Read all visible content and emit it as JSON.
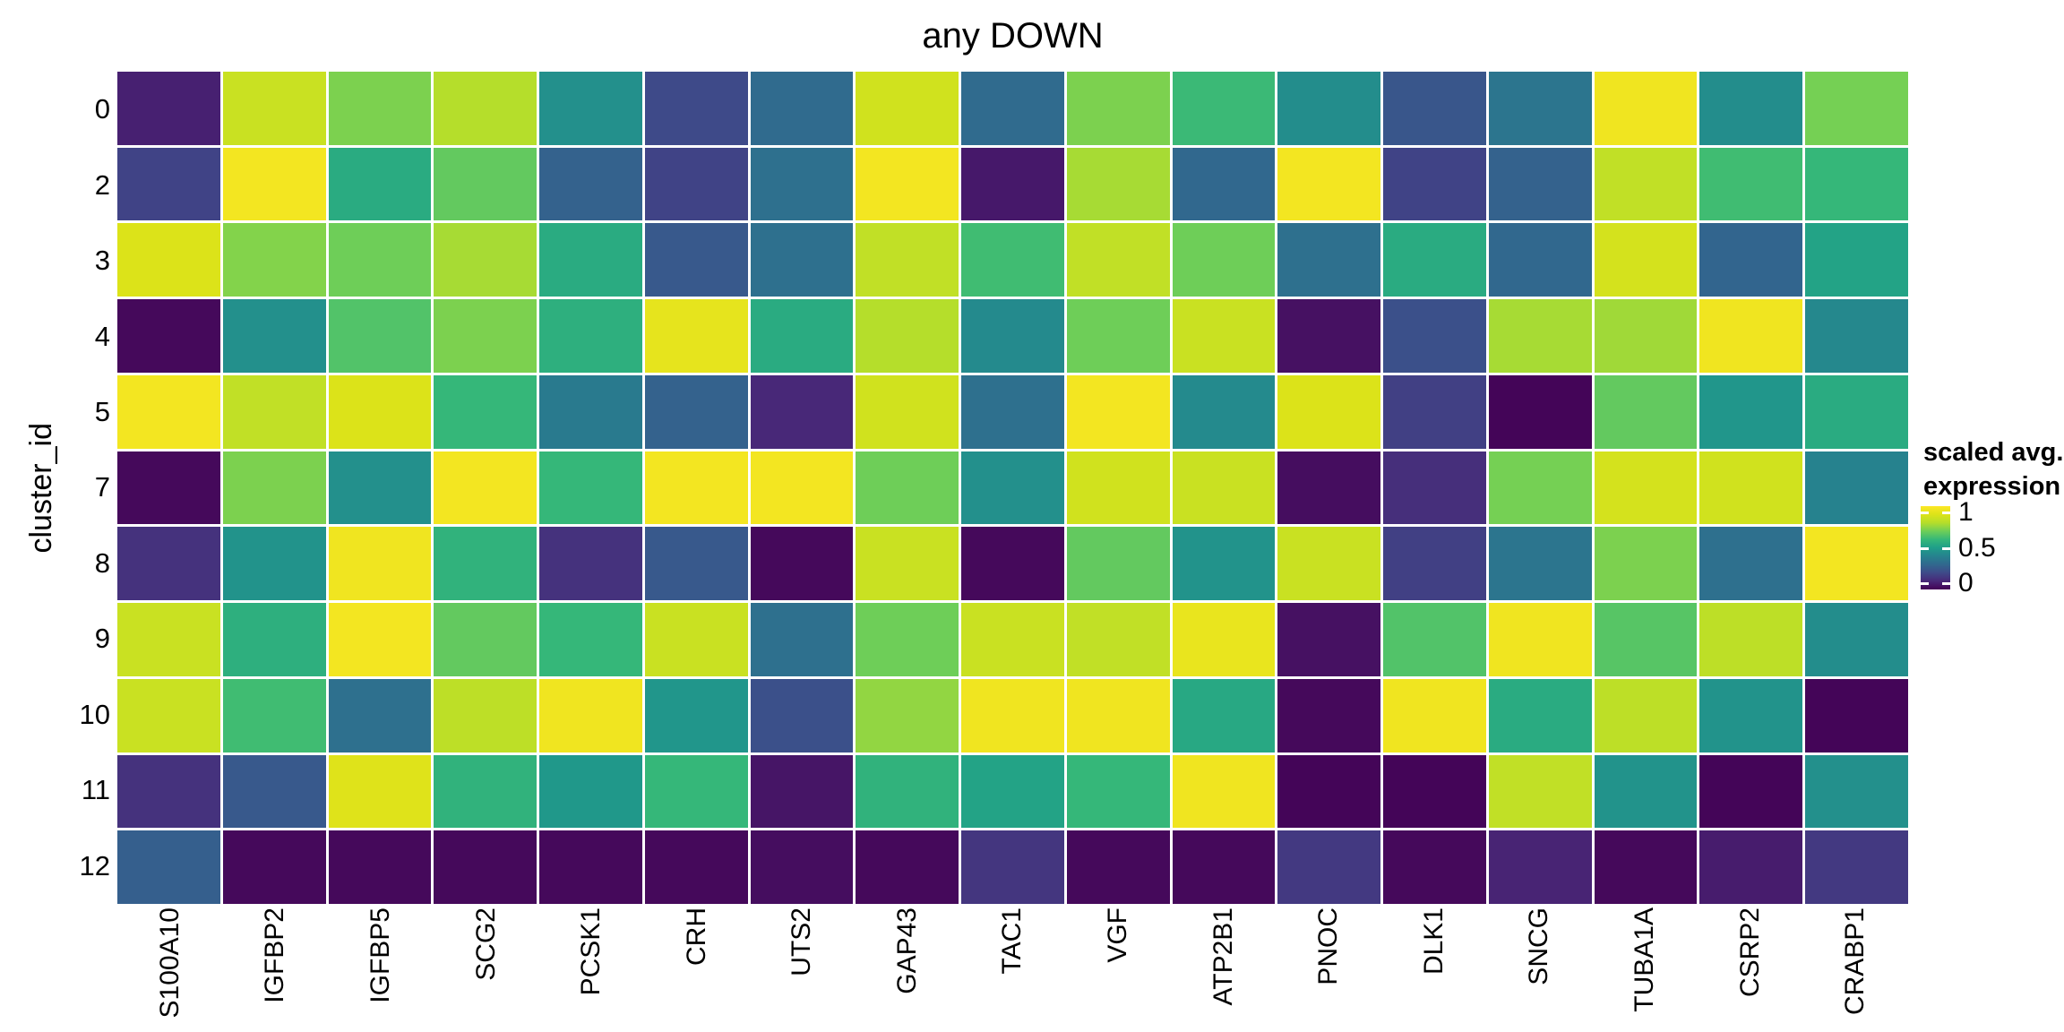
{
  "title": "any DOWN",
  "axes": {
    "y_title": "cluster_id"
  },
  "legend": {
    "title_line1": "scaled avg.",
    "title_line2": "expression",
    "tick_labels": [
      "1",
      "0.5",
      "0"
    ]
  },
  "colors": {
    "background": "#ffffff",
    "cell_gap": "#ffffff",
    "text": "#000000"
  },
  "chart_data": {
    "type": "heatmap",
    "title": "any DOWN",
    "xlabel": "",
    "ylabel": "cluster_id",
    "legend_title": "scaled avg. expression",
    "value_range": [
      0,
      1
    ],
    "grid": false,
    "legend_position": "right",
    "colormap": "viridis",
    "colormap_stops": [
      "#440154",
      "#482878",
      "#3e4a89",
      "#31688e",
      "#26828e",
      "#1f9e89",
      "#35b779",
      "#6ece58",
      "#b5de2b",
      "#dce319",
      "#fde725"
    ],
    "colorbar_ticks": [
      {
        "value": 1,
        "label": "1"
      },
      {
        "value": 0.5,
        "label": "0.5"
      },
      {
        "value": 0,
        "label": "0"
      }
    ],
    "columns": [
      "S100A10",
      "IGFBP2",
      "IGFBP5",
      "SCG2",
      "PCSK1",
      "CRH",
      "UTS2",
      "GAP43",
      "TAC1",
      "VGF",
      "ATP2B1",
      "PNOC",
      "DLK1",
      "SNCG",
      "TUBA1A",
      "CSRP2",
      "CRABP1"
    ],
    "rows": [
      "0",
      "2",
      "3",
      "4",
      "5",
      "7",
      "8",
      "9",
      "10",
      "11",
      "12"
    ],
    "values": [
      [
        0.08,
        0.85,
        0.72,
        0.8,
        0.45,
        0.2,
        0.31,
        0.87,
        0.31,
        0.72,
        0.61,
        0.44,
        0.24,
        0.35,
        0.96,
        0.44,
        0.71
      ],
      [
        0.18,
        0.97,
        0.55,
        0.68,
        0.28,
        0.18,
        0.33,
        0.97,
        0.06,
        0.78,
        0.3,
        0.97,
        0.18,
        0.28,
        0.83,
        0.62,
        0.6
      ],
      [
        0.9,
        0.73,
        0.7,
        0.78,
        0.55,
        0.25,
        0.33,
        0.83,
        0.62,
        0.83,
        0.7,
        0.33,
        0.55,
        0.3,
        0.88,
        0.29,
        0.52
      ],
      [
        0.02,
        0.45,
        0.65,
        0.72,
        0.57,
        0.93,
        0.55,
        0.8,
        0.43,
        0.7,
        0.85,
        0.04,
        0.22,
        0.78,
        0.77,
        0.96,
        0.42
      ],
      [
        0.97,
        0.83,
        0.9,
        0.6,
        0.37,
        0.28,
        0.1,
        0.87,
        0.33,
        0.97,
        0.43,
        0.9,
        0.17,
        0.01,
        0.68,
        0.47,
        0.55
      ],
      [
        0.02,
        0.72,
        0.45,
        0.97,
        0.6,
        0.97,
        0.97,
        0.7,
        0.45,
        0.87,
        0.85,
        0.03,
        0.12,
        0.71,
        0.88,
        0.87,
        0.4
      ],
      [
        0.13,
        0.46,
        0.96,
        0.58,
        0.13,
        0.25,
        0.02,
        0.85,
        0.02,
        0.68,
        0.46,
        0.85,
        0.17,
        0.35,
        0.72,
        0.33,
        0.97
      ],
      [
        0.85,
        0.57,
        0.97,
        0.68,
        0.6,
        0.85,
        0.33,
        0.7,
        0.85,
        0.83,
        0.94,
        0.04,
        0.65,
        0.96,
        0.66,
        0.82,
        0.44
      ],
      [
        0.85,
        0.62,
        0.33,
        0.82,
        0.96,
        0.47,
        0.22,
        0.75,
        0.96,
        0.96,
        0.54,
        0.02,
        0.96,
        0.55,
        0.82,
        0.46,
        0.01
      ],
      [
        0.13,
        0.25,
        0.91,
        0.58,
        0.48,
        0.6,
        0.05,
        0.58,
        0.52,
        0.6,
        0.96,
        0.01,
        0.01,
        0.83,
        0.46,
        0.01,
        0.45
      ],
      [
        0.27,
        0.02,
        0.02,
        0.02,
        0.02,
        0.02,
        0.03,
        0.02,
        0.14,
        0.02,
        0.02,
        0.15,
        0.02,
        0.09,
        0.02,
        0.07,
        0.15
      ]
    ]
  }
}
